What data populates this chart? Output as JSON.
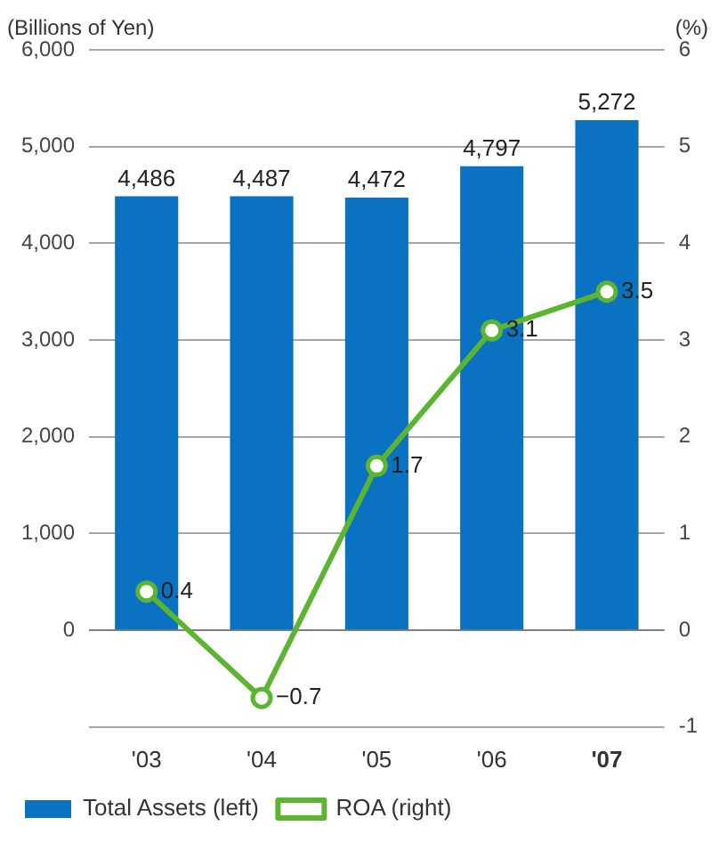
{
  "chart_data": {
    "type": "bar",
    "ylabel": "(Billions of Yen)",
    "y2label": "(%)",
    "categories": [
      "'03",
      "'04",
      "'05",
      "'06",
      "'07"
    ],
    "series": [
      {
        "name": "Total Assets (left)",
        "color": "#0a72c0",
        "values": [
          4486,
          4487,
          4472,
          4797,
          5272
        ],
        "value_labels": [
          "4,486",
          "4,487",
          "4,472",
          "4,797",
          "5,272"
        ]
      },
      {
        "name": "ROA (right)",
        "type": "line",
        "axis": "y2",
        "color": "#5cb531",
        "values": [
          0.4,
          -0.7,
          1.7,
          3.1,
          3.5
        ]
      }
    ],
    "ylim": [
      -1000,
      6000
    ],
    "yticks": [
      {
        "value": -1000,
        "label": null
      },
      0,
      {
        "value": 1000,
        "label": "1,000"
      },
      {
        "value": 2000,
        "label": "2,000"
      },
      {
        "value": 3000,
        "label": "3,000"
      },
      {
        "value": 4000,
        "label": "4,000"
      },
      {
        "value": 5000,
        "label": "5,000"
      },
      {
        "value": 6000,
        "label": "6,000"
      }
    ],
    "y2lim": [
      -1,
      6
    ],
    "y2ticks": [
      -1,
      0,
      1,
      2,
      3,
      4,
      5,
      6
    ],
    "grid": "y",
    "legend": "bottom",
    "marker": "circle",
    "line_style": "solid",
    "data_labels": true
  }
}
